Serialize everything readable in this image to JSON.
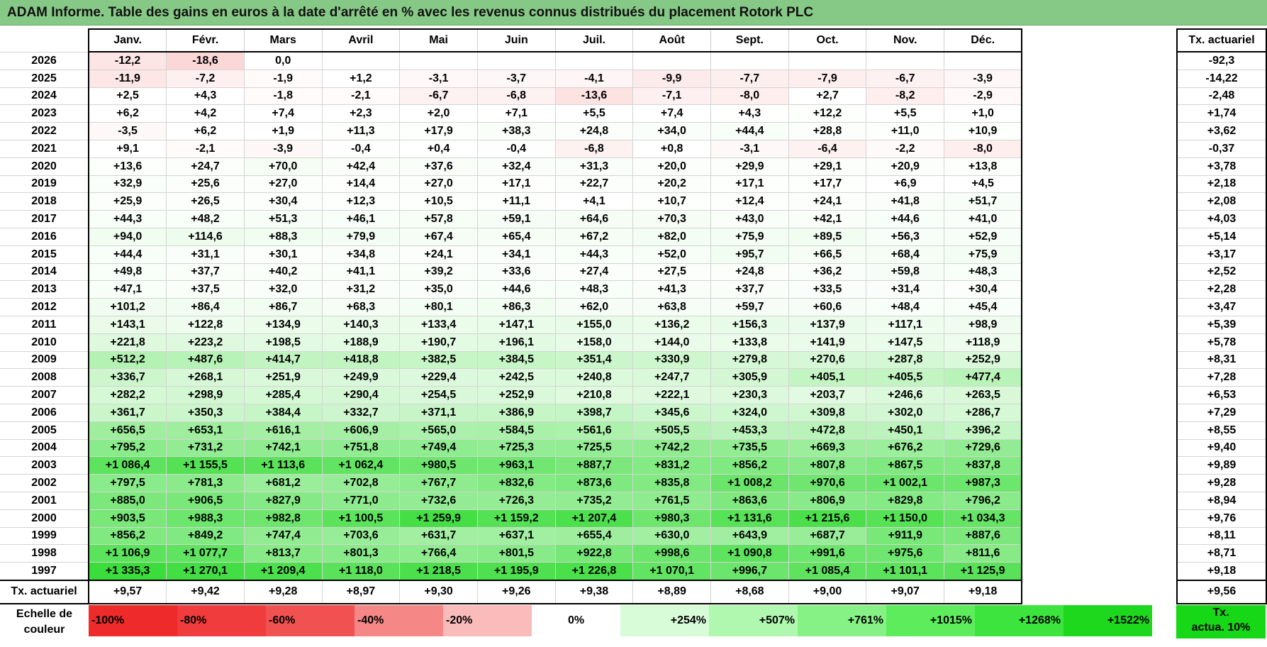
{
  "title": "ADAM Informe. Table des gains en euros à la date d'arrêté en % avec les revenus connus distribués du placement Rotork PLC",
  "months": [
    "Janv.",
    "Févr.",
    "Mars",
    "Avril",
    "Mai",
    "Juin",
    "Juil.",
    "Août",
    "Sept.",
    "Oct.",
    "Nov.",
    "Déc."
  ],
  "side_header": "Tx. actuariel",
  "rows": [
    {
      "year": "2026",
      "values": [
        "-12,2",
        "-18,6",
        "0,0",
        "",
        "",
        "",
        "",
        "",
        "",
        "",
        "",
        ""
      ],
      "tx": "-92,3"
    },
    {
      "year": "2025",
      "values": [
        "-11,9",
        "-7,2",
        "-1,9",
        "+1,2",
        "-3,1",
        "-3,7",
        "-4,1",
        "-9,9",
        "-7,7",
        "-7,9",
        "-6,7",
        "-3,9"
      ],
      "tx": "-14,22"
    },
    {
      "year": "2024",
      "values": [
        "+2,5",
        "+4,3",
        "-1,8",
        "-2,1",
        "-6,7",
        "-6,8",
        "-13,6",
        "-7,1",
        "-8,0",
        "+2,7",
        "-8,2",
        "-2,9"
      ],
      "tx": "-2,48"
    },
    {
      "year": "2023",
      "values": [
        "+6,2",
        "+4,2",
        "+7,4",
        "+2,3",
        "+2,0",
        "+7,1",
        "+5,5",
        "+7,4",
        "+4,3",
        "+12,2",
        "+5,5",
        "+1,0"
      ],
      "tx": "+1,74"
    },
    {
      "year": "2022",
      "values": [
        "-3,5",
        "+6,2",
        "+1,9",
        "+11,3",
        "+17,9",
        "+38,3",
        "+24,8",
        "+34,0",
        "+44,4",
        "+28,8",
        "+11,0",
        "+10,9"
      ],
      "tx": "+3,62"
    },
    {
      "year": "2021",
      "values": [
        "+9,1",
        "-2,1",
        "-3,9",
        "-0,4",
        "+0,4",
        "-0,4",
        "-6,8",
        "+0,8",
        "-3,1",
        "-6,4",
        "-2,2",
        "-8,0"
      ],
      "tx": "-0,37"
    },
    {
      "year": "2020",
      "values": [
        "+13,6",
        "+24,7",
        "+70,0",
        "+42,4",
        "+37,6",
        "+32,4",
        "+31,3",
        "+20,0",
        "+29,9",
        "+29,1",
        "+20,9",
        "+13,8"
      ],
      "tx": "+3,78"
    },
    {
      "year": "2019",
      "values": [
        "+32,9",
        "+25,6",
        "+27,0",
        "+14,4",
        "+27,0",
        "+17,1",
        "+22,7",
        "+20,2",
        "+17,1",
        "+17,7",
        "+6,9",
        "+4,5"
      ],
      "tx": "+2,18"
    },
    {
      "year": "2018",
      "values": [
        "+25,9",
        "+26,5",
        "+30,4",
        "+12,3",
        "+10,5",
        "+11,1",
        "+4,1",
        "+10,7",
        "+12,4",
        "+24,1",
        "+41,8",
        "+51,7"
      ],
      "tx": "+2,08"
    },
    {
      "year": "2017",
      "values": [
        "+44,3",
        "+48,2",
        "+51,3",
        "+46,1",
        "+57,8",
        "+59,1",
        "+64,6",
        "+70,3",
        "+43,0",
        "+42,1",
        "+44,6",
        "+41,0"
      ],
      "tx": "+4,03"
    },
    {
      "year": "2016",
      "values": [
        "+94,0",
        "+114,6",
        "+88,3",
        "+79,9",
        "+67,4",
        "+65,4",
        "+67,2",
        "+82,0",
        "+75,9",
        "+89,5",
        "+56,3",
        "+52,9"
      ],
      "tx": "+5,14"
    },
    {
      "year": "2015",
      "values": [
        "+44,4",
        "+31,1",
        "+30,1",
        "+34,8",
        "+24,1",
        "+34,1",
        "+44,3",
        "+52,0",
        "+95,7",
        "+66,5",
        "+68,4",
        "+75,9"
      ],
      "tx": "+3,17"
    },
    {
      "year": "2014",
      "values": [
        "+49,8",
        "+37,7",
        "+40,2",
        "+41,1",
        "+39,2",
        "+33,6",
        "+27,4",
        "+27,5",
        "+24,8",
        "+36,2",
        "+59,8",
        "+48,3"
      ],
      "tx": "+2,52"
    },
    {
      "year": "2013",
      "values": [
        "+47,1",
        "+37,5",
        "+32,0",
        "+31,2",
        "+35,0",
        "+44,6",
        "+48,3",
        "+41,3",
        "+37,7",
        "+33,5",
        "+31,4",
        "+30,4"
      ],
      "tx": "+2,28"
    },
    {
      "year": "2012",
      "values": [
        "+101,2",
        "+86,4",
        "+86,7",
        "+68,3",
        "+80,1",
        "+86,3",
        "+62,0",
        "+63,8",
        "+59,7",
        "+60,6",
        "+48,4",
        "+45,4"
      ],
      "tx": "+3,47"
    },
    {
      "year": "2011",
      "values": [
        "+143,1",
        "+122,8",
        "+134,9",
        "+140,3",
        "+133,4",
        "+147,1",
        "+155,0",
        "+136,2",
        "+156,3",
        "+137,9",
        "+117,1",
        "+98,9"
      ],
      "tx": "+5,39"
    },
    {
      "year": "2010",
      "values": [
        "+221,8",
        "+223,2",
        "+198,5",
        "+188,9",
        "+190,7",
        "+196,1",
        "+158,0",
        "+144,0",
        "+133,8",
        "+141,9",
        "+147,5",
        "+118,9"
      ],
      "tx": "+5,78"
    },
    {
      "year": "2009",
      "values": [
        "+512,2",
        "+487,6",
        "+414,7",
        "+418,8",
        "+382,5",
        "+384,5",
        "+351,4",
        "+330,9",
        "+279,8",
        "+270,6",
        "+287,8",
        "+252,9"
      ],
      "tx": "+8,31"
    },
    {
      "year": "2008",
      "values": [
        "+336,7",
        "+268,1",
        "+251,9",
        "+249,9",
        "+229,4",
        "+242,5",
        "+240,8",
        "+247,7",
        "+305,9",
        "+405,1",
        "+405,5",
        "+477,4"
      ],
      "tx": "+7,28"
    },
    {
      "year": "2007",
      "values": [
        "+282,2",
        "+298,9",
        "+285,4",
        "+290,4",
        "+254,5",
        "+252,9",
        "+210,8",
        "+222,1",
        "+230,3",
        "+203,7",
        "+246,6",
        "+263,5"
      ],
      "tx": "+6,53"
    },
    {
      "year": "2006",
      "values": [
        "+361,7",
        "+350,3",
        "+384,4",
        "+332,7",
        "+371,1",
        "+386,9",
        "+398,7",
        "+345,6",
        "+324,0",
        "+309,8",
        "+302,0",
        "+286,7"
      ],
      "tx": "+7,29"
    },
    {
      "year": "2005",
      "values": [
        "+656,5",
        "+653,1",
        "+616,1",
        "+606,9",
        "+565,0",
        "+584,5",
        "+561,6",
        "+505,5",
        "+453,3",
        "+472,8",
        "+450,1",
        "+396,2"
      ],
      "tx": "+8,55"
    },
    {
      "year": "2004",
      "values": [
        "+795,2",
        "+731,2",
        "+742,1",
        "+751,8",
        "+749,4",
        "+725,3",
        "+725,5",
        "+742,2",
        "+735,5",
        "+669,3",
        "+676,2",
        "+729,6"
      ],
      "tx": "+9,40"
    },
    {
      "year": "2003",
      "values": [
        "+1 086,4",
        "+1 155,5",
        "+1 113,6",
        "+1 062,4",
        "+980,5",
        "+963,1",
        "+887,7",
        "+831,2",
        "+856,2",
        "+807,8",
        "+867,5",
        "+837,8"
      ],
      "tx": "+9,89"
    },
    {
      "year": "2002",
      "values": [
        "+797,5",
        "+781,3",
        "+681,2",
        "+702,8",
        "+767,7",
        "+832,6",
        "+873,6",
        "+835,8",
        "+1 008,2",
        "+970,6",
        "+1 002,1",
        "+987,3"
      ],
      "tx": "+9,28"
    },
    {
      "year": "2001",
      "values": [
        "+885,0",
        "+906,5",
        "+827,9",
        "+771,0",
        "+732,6",
        "+726,3",
        "+735,2",
        "+761,5",
        "+863,6",
        "+806,9",
        "+829,8",
        "+796,2"
      ],
      "tx": "+8,94"
    },
    {
      "year": "2000",
      "values": [
        "+903,5",
        "+988,3",
        "+982,8",
        "+1 100,5",
        "+1 259,9",
        "+1 159,2",
        "+1 207,4",
        "+980,3",
        "+1 131,6",
        "+1 215,6",
        "+1 150,0",
        "+1 034,3"
      ],
      "tx": "+9,76"
    },
    {
      "year": "1999",
      "values": [
        "+856,2",
        "+849,2",
        "+747,4",
        "+703,6",
        "+631,7",
        "+637,1",
        "+655,4",
        "+630,0",
        "+643,9",
        "+687,7",
        "+911,9",
        "+887,6"
      ],
      "tx": "+8,11"
    },
    {
      "year": "1998",
      "values": [
        "+1 106,9",
        "+1 077,7",
        "+813,7",
        "+801,3",
        "+766,4",
        "+801,5",
        "+922,8",
        "+998,6",
        "+1 090,8",
        "+991,6",
        "+975,6",
        "+811,6"
      ],
      "tx": "+8,71"
    },
    {
      "year": "1997",
      "values": [
        "+1 335,3",
        "+1 270,1",
        "+1 209,4",
        "+1 118,0",
        "+1 218,5",
        "+1 195,9",
        "+1 226,8",
        "+1 070,1",
        "+996,7",
        "+1 085,4",
        "+1 101,1",
        "+1 125,9"
      ],
      "tx": "+9,18"
    }
  ],
  "total_row": {
    "label": "Tx. actuariel",
    "values": [
      "+9,57",
      "+9,42",
      "+9,28",
      "+8,97",
      "+9,30",
      "+9,26",
      "+9,38",
      "+8,89",
      "+8,68",
      "+9,00",
      "+9,07",
      "+9,18"
    ],
    "tx": "+9,56"
  },
  "legend": {
    "label_line1": "Echelle de",
    "label_line2": "couleur",
    "swatches": [
      {
        "label": "-100%",
        "color": "#ee2a2a",
        "kind": "neg"
      },
      {
        "label": "-80%",
        "color": "#f03c3c",
        "kind": "neg"
      },
      {
        "label": "-60%",
        "color": "#f25151",
        "kind": "neg"
      },
      {
        "label": "-40%",
        "color": "#f58787",
        "kind": "neg"
      },
      {
        "label": "-20%",
        "color": "#fabbbb",
        "kind": "neg"
      },
      {
        "label": "0%",
        "color": "#ffffff",
        "kind": "zero"
      },
      {
        "label": "+254%",
        "color": "#d8fcd8",
        "kind": "pos"
      },
      {
        "label": "+507%",
        "color": "#b0f8b0",
        "kind": "pos"
      },
      {
        "label": "+761%",
        "color": "#86f286",
        "kind": "pos"
      },
      {
        "label": "+1015%",
        "color": "#5cec5c",
        "kind": "pos"
      },
      {
        "label": "+1268%",
        "color": "#3de43d",
        "kind": "pos"
      },
      {
        "label": "+1522%",
        "color": "#1ed81e",
        "kind": "pos"
      }
    ],
    "tx_line1": "Tx.",
    "tx_line2": "actua. 10%",
    "tx_color": "#17d817"
  }
}
